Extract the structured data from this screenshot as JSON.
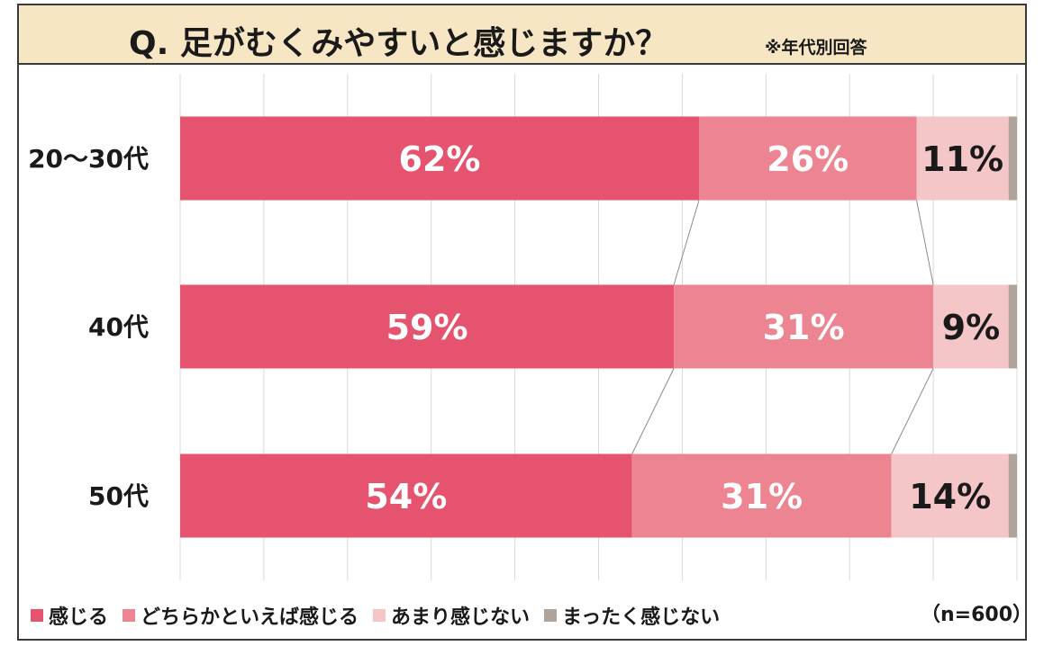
{
  "title": "Q. 足がむくみやすいと感じますか？",
  "title_note": "※年代別回答",
  "sample_note": "（n=600）",
  "colors": {
    "title_background": "#f7e6c4",
    "series": [
      "#e5536f",
      "#ec8591",
      "#f5c6c8",
      "#b0a39a"
    ]
  },
  "chart_data": {
    "type": "bar",
    "orientation": "horizontal",
    "stacked": true,
    "percent": true,
    "categories": [
      "20～30代",
      "40代",
      "50代"
    ],
    "series": [
      {
        "name": "感じる",
        "values": [
          62,
          59,
          54
        ],
        "labels": [
          "62%",
          "59%",
          "54%"
        ]
      },
      {
        "name": "どちらかといえば感じる",
        "values": [
          26,
          31,
          31
        ],
        "labels": [
          "26%",
          "31%",
          "31%"
        ]
      },
      {
        "name": "あまり感じない",
        "values": [
          11,
          9,
          14
        ],
        "labels": [
          "11%",
          "9%",
          "14%"
        ]
      },
      {
        "name": "まったく感じない",
        "values": [
          1,
          1,
          1
        ],
        "labels": [
          "",
          "",
          ""
        ]
      }
    ],
    "xlim": [
      0,
      100
    ],
    "grid": true,
    "legend_position": "bottom",
    "series_lines": true
  }
}
